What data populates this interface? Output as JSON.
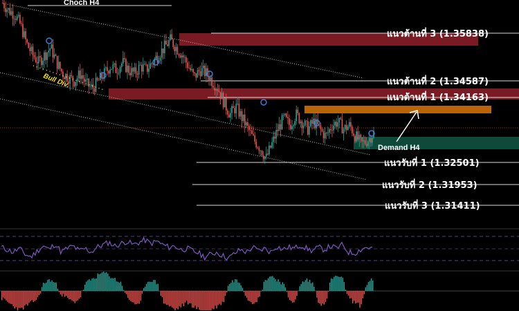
{
  "chart_data": {
    "type": "candlestick",
    "title": "",
    "annotations": {
      "choch": "Choch H4",
      "bull_div": "Bull Div.",
      "demand": "Demand H4"
    },
    "resistance_levels": [
      {
        "label": "แนวต้านที่ 3 (1.35838)",
        "value": 1.35838
      },
      {
        "label": "แนวต้านที่ 2 (1.34587)",
        "value": 1.34587
      },
      {
        "label": "แนวต้านที่ 1 (1.34163)",
        "value": 1.34163
      }
    ],
    "support_levels": [
      {
        "label": "แนวรับที่ 1 (1.32501)",
        "value": 1.32501
      },
      {
        "label": "แนวรับที่ 2 (1.31953)",
        "value": 1.31953
      },
      {
        "label": "แนวรับที่ 3 (1.31411)",
        "value": 1.31411
      }
    ],
    "price_path": [
      1.368,
      1.366,
      1.365,
      1.362,
      1.357,
      1.354,
      1.352,
      1.354,
      1.356,
      1.352,
      1.349,
      1.348,
      1.347,
      1.349,
      1.346,
      1.345,
      1.347,
      1.349,
      1.351,
      1.35,
      1.352,
      1.35,
      1.349,
      1.351,
      1.35,
      1.352,
      1.354,
      1.356,
      1.358,
      1.356,
      1.354,
      1.351,
      1.348,
      1.35,
      1.349,
      1.347,
      1.345,
      1.341,
      1.338,
      1.34,
      1.337,
      1.334,
      1.331,
      1.329,
      1.326,
      1.33,
      1.334,
      1.337,
      1.335,
      1.338,
      1.336,
      1.334,
      1.336,
      1.334,
      1.332,
      1.335,
      1.336,
      1.334,
      1.335,
      1.332,
      1.33,
      1.331,
      1.333
    ],
    "rsi_path": [
      52,
      48,
      44,
      50,
      40,
      36,
      46,
      54,
      48,
      58,
      44,
      50,
      54,
      46,
      50,
      44,
      52,
      56,
      60,
      54,
      58,
      62,
      56,
      60,
      64,
      58,
      62,
      56,
      52,
      54,
      48,
      50,
      46,
      42,
      36,
      40,
      44,
      38,
      34,
      42,
      48,
      44,
      52,
      46,
      50,
      44,
      54,
      48,
      52,
      50,
      56,
      50,
      46,
      52,
      48,
      54,
      50,
      56,
      44,
      42,
      48,
      52,
      50
    ],
    "histogram": [
      -2,
      -3,
      -4,
      -5,
      -4,
      -3,
      -2,
      2,
      3,
      2,
      -1,
      -2,
      -3,
      -2,
      2,
      3,
      4,
      5,
      4,
      3,
      2,
      -2,
      -3,
      -4,
      2,
      3,
      2,
      -3,
      -4,
      -5,
      -4,
      -3,
      -4,
      -5,
      -6,
      -5,
      -4,
      -3,
      2,
      3,
      2,
      -2,
      -3,
      -2,
      3,
      4,
      3,
      2,
      -2,
      -3,
      2,
      3,
      2,
      -3,
      -4,
      3,
      4,
      3,
      -2,
      -3,
      -4,
      2,
      3
    ],
    "series_color_up": "#26a69a",
    "series_color_down": "#ef5350"
  },
  "colors": {
    "resistance_zone": "#7a1a22",
    "demand_zone": "#0d4a3a",
    "orange_zone": "#b8650a",
    "rsi_line": "#7e57c2",
    "current_price_line": "#b22222"
  }
}
